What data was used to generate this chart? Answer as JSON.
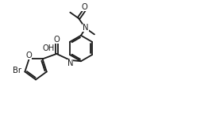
{
  "bg_color": "#ffffff",
  "line_color": "#1a1a1a",
  "line_width": 1.3,
  "font_size": 7.2,
  "fig_width": 2.62,
  "fig_height": 1.59,
  "dpi": 100,
  "xlim": [
    0,
    10
  ],
  "ylim": [
    0,
    6
  ]
}
